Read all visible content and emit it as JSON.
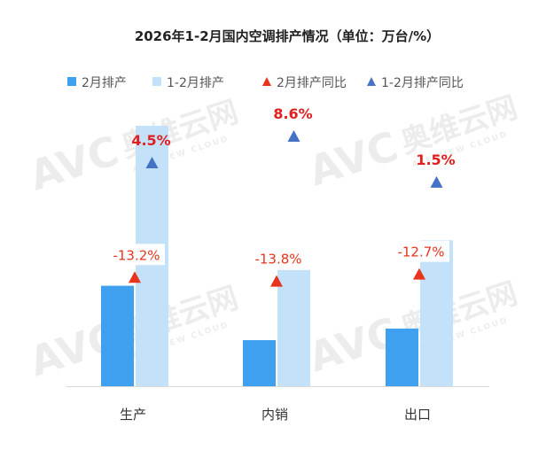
{
  "chart_data": {
    "type": "bar",
    "title": "2026年1-2月国内空调排产情况（单位：万台/%）",
    "categories": [
      "生产",
      "内销",
      "出口"
    ],
    "series": [
      {
        "name": "2月排产",
        "kind": "bar",
        "values": [
          1080,
          495,
          620
        ],
        "color": "#3fa0f0"
      },
      {
        "name": "1-2月排产",
        "kind": "bar",
        "values": [
          2800,
          1250,
          1570
        ],
        "color": "#c3e2fa"
      },
      {
        "name": "2月排产同比",
        "kind": "marker",
        "values": [
          -13.2,
          -13.8,
          -12.7
        ],
        "labels": [
          "-13.2%",
          "-13.8%",
          "-12.7%"
        ],
        "color": "#e8341c",
        "label_color": "#e8341c"
      },
      {
        "name": "1-2月排产同比",
        "kind": "marker",
        "values": [
          4.5,
          8.6,
          1.5
        ],
        "labels": [
          "4.5%",
          "8.6%",
          "1.5%"
        ],
        "color": "#4472c4",
        "label_color": "#e02020"
      }
    ],
    "ylim": [
      0,
      3200
    ],
    "y2lim": [
      -30,
      16
    ],
    "grid": false,
    "legend": "top",
    "axes_visible": false
  },
  "watermark": {
    "brand": "AVC",
    "cn": "奥维云网",
    "en": "ALL VIEW CLOUD"
  }
}
